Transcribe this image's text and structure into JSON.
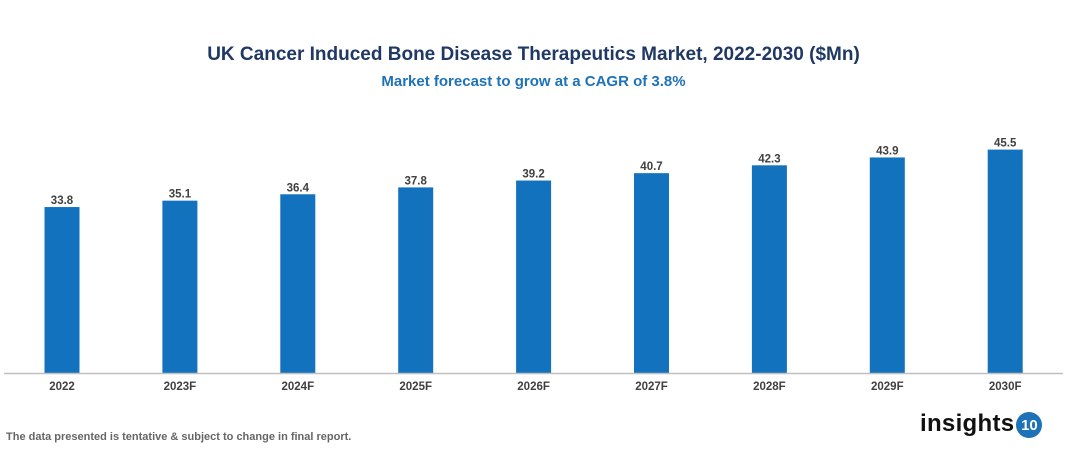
{
  "chart_data": {
    "type": "bar",
    "title": "UK Cancer Induced Bone Disease Therapeutics Market, 2022-2030 ($Mn)",
    "subtitle": "Market forecast to grow at a CAGR of 3.8%",
    "categories": [
      "2022",
      "2023F",
      "2024F",
      "2025F",
      "2026F",
      "2027F",
      "2028F",
      "2029F",
      "2030F"
    ],
    "values": [
      33.8,
      35.1,
      36.4,
      37.8,
      39.2,
      40.7,
      42.3,
      43.9,
      45.5
    ],
    "xlabel": "",
    "ylabel": "",
    "ylim": [
      0,
      50
    ],
    "grid": false,
    "data_labels": true,
    "bar_color": "#1372bd"
  },
  "footnote": "The data presented is tentative & subject to change in final report.",
  "logo": {
    "text": "insights",
    "badge": "10"
  }
}
